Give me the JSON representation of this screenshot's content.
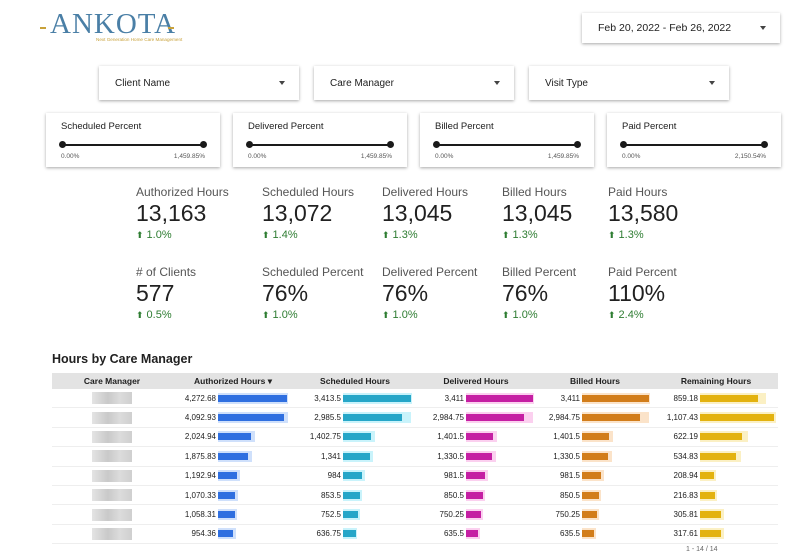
{
  "brand": {
    "name": "ANKOTA",
    "tagline": "Next Generation Home Care Management"
  },
  "date_range": {
    "value": "Feb 20, 2022 - Feb 26, 2022"
  },
  "filters": [
    {
      "label": "Client Name"
    },
    {
      "label": "Care Manager"
    },
    {
      "label": "Visit Type"
    }
  ],
  "sliders": [
    {
      "label": "Scheduled Percent",
      "min": "0.00%",
      "max": "1,459.85%"
    },
    {
      "label": "Delivered Percent",
      "min": "0.00%",
      "max": "1,459.85%"
    },
    {
      "label": "Billed Percent",
      "min": "0.00%",
      "max": "1,459.85%"
    },
    {
      "label": "Paid Percent",
      "min": "0.00%",
      "max": "2,150.54%"
    }
  ],
  "kpis": [
    {
      "label": "Authorized Hours",
      "value": "13,163",
      "delta": "1.0%"
    },
    {
      "label": "Scheduled Hours",
      "value": "13,072",
      "delta": "1.4%"
    },
    {
      "label": "Delivered Hours",
      "value": "13,045",
      "delta": "1.3%"
    },
    {
      "label": "Billed Hours",
      "value": "13,045",
      "delta": "1.3%"
    },
    {
      "label": "Paid Hours",
      "value": "13,580",
      "delta": "1.3%"
    },
    {
      "label": "# of Clients",
      "value": "577",
      "delta": "0.5%"
    },
    {
      "label": "Scheduled Percent",
      "value": "76%",
      "delta": "1.0%"
    },
    {
      "label": "Delivered Percent",
      "value": "76%",
      "delta": "1.0%"
    },
    {
      "label": "Billed Percent",
      "value": "76%",
      "delta": "1.0%"
    },
    {
      "label": "Paid Percent",
      "value": "110%",
      "delta": "2.4%"
    }
  ],
  "table": {
    "title": "Hours by Care Manager",
    "columns": [
      "Care Manager",
      "Authorized Hours",
      "Scheduled Hours",
      "Delivered Hours",
      "Billed Hours",
      "Remaining Hours"
    ],
    "sort_indicator": "▾",
    "colors": {
      "authorized": [
        "#2f6fe0",
        "#cfe0fb"
      ],
      "scheduled": [
        "#26a6c8",
        "#c9f3fb"
      ],
      "delivered": [
        "#c51fa3",
        "#fbd0ef"
      ],
      "billed": [
        "#d27d1a",
        "#fbe3c9"
      ],
      "remaining": [
        "#e3b20f",
        "#fbf0c4"
      ]
    },
    "rows": [
      {
        "authorized": "4,272.68",
        "scheduled": "3,413.5",
        "delivered": "3,411",
        "billed": "3,411",
        "remaining": "859.18",
        "v": [
          4272.68,
          3413.5,
          3411,
          3411,
          859.18
        ]
      },
      {
        "authorized": "4,092.93",
        "scheduled": "2,985.5",
        "delivered": "2,984.75",
        "billed": "2,984.75",
        "remaining": "1,107.43",
        "v": [
          4092.93,
          2985.5,
          2984.75,
          2984.75,
          1107.43
        ]
      },
      {
        "authorized": "2,024.94",
        "scheduled": "1,402.75",
        "delivered": "1,401.5",
        "billed": "1,401.5",
        "remaining": "622.19",
        "v": [
          2024.94,
          1402.75,
          1401.5,
          1401.5,
          622.19
        ]
      },
      {
        "authorized": "1,875.83",
        "scheduled": "1,341",
        "delivered": "1,330.5",
        "billed": "1,330.5",
        "remaining": "534.83",
        "v": [
          1875.83,
          1341,
          1330.5,
          1330.5,
          534.83
        ]
      },
      {
        "authorized": "1,192.94",
        "scheduled": "984",
        "delivered": "981.5",
        "billed": "981.5",
        "remaining": "208.94",
        "v": [
          1192.94,
          984,
          981.5,
          981.5,
          208.94
        ]
      },
      {
        "authorized": "1,070.33",
        "scheduled": "853.5",
        "delivered": "850.5",
        "billed": "850.5",
        "remaining": "216.83",
        "v": [
          1070.33,
          853.5,
          850.5,
          850.5,
          216.83
        ]
      },
      {
        "authorized": "1,058.31",
        "scheduled": "752.5",
        "delivered": "750.25",
        "billed": "750.25",
        "remaining": "305.81",
        "v": [
          1058.31,
          752.5,
          750.25,
          750.25,
          305.81
        ]
      },
      {
        "authorized": "954.36",
        "scheduled": "636.75",
        "delivered": "635.5",
        "billed": "635.5",
        "remaining": "317.61",
        "v": [
          954.36,
          636.75,
          635.5,
          635.5,
          317.61
        ]
      }
    ],
    "max": [
      4272.68,
      3413.5,
      3411,
      3411,
      1107.43
    ],
    "pager": "1 - 14 / 14"
  }
}
